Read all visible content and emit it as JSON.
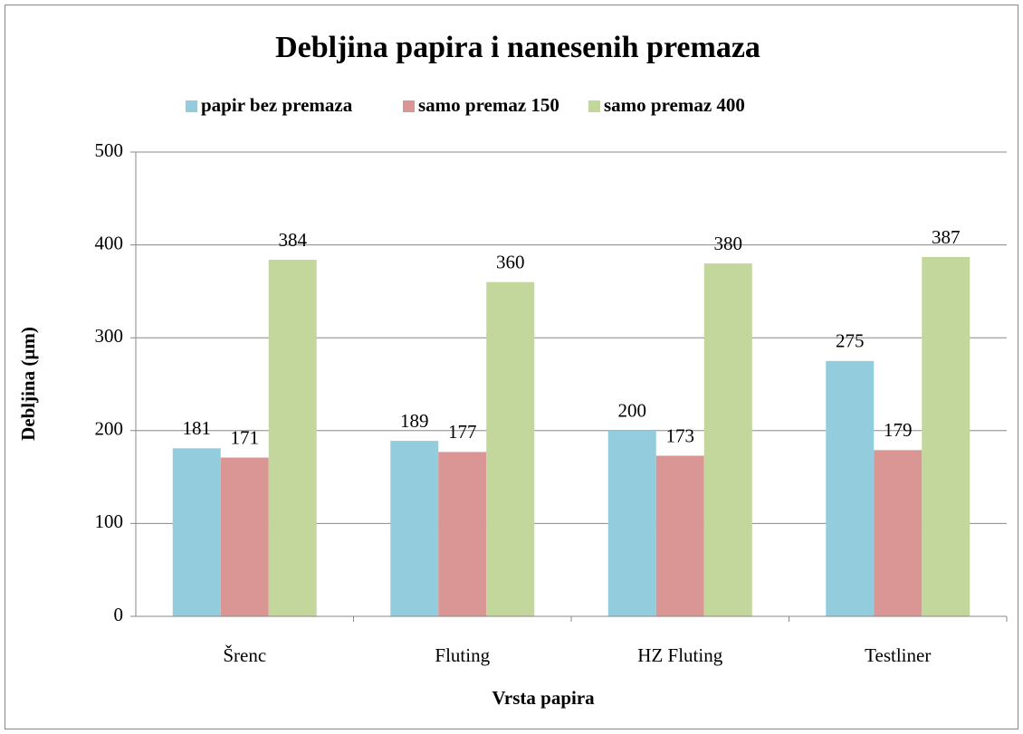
{
  "chart_data": {
    "type": "bar",
    "title": "Debljina papira i nanesenih premaza",
    "x_label": "Vrsta papira",
    "y_label": "Debljina (µm)",
    "categories": [
      "Šrenc",
      "Fluting",
      "HZ Fluting",
      "Testliner"
    ],
    "series": [
      {
        "name": "papir bez premaza",
        "color": "#93cddd",
        "values": [
          181,
          189,
          200,
          275
        ]
      },
      {
        "name": "samo premaz 150",
        "color": "#d99694",
        "values": [
          171,
          177,
          173,
          179
        ]
      },
      {
        "name": "samo premaz 400",
        "color": "#c3d69b",
        "values": [
          384,
          360,
          380,
          387
        ]
      }
    ],
    "ylim": [
      0,
      500
    ],
    "yticks": [
      0,
      100,
      200,
      300,
      400,
      500
    ],
    "grid": true,
    "legend": "top"
  }
}
